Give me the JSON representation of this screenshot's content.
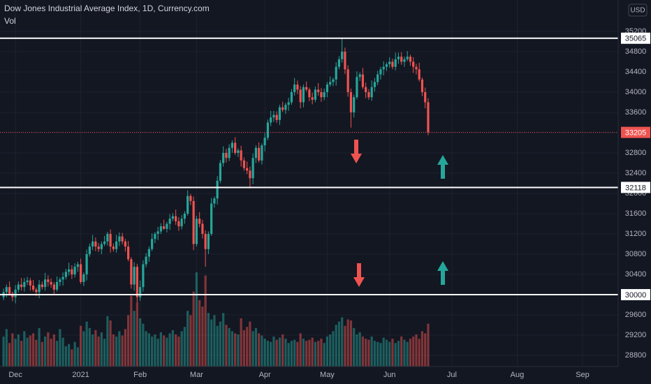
{
  "chart_data": {
    "type": "candlestick",
    "title": "Dow Jones Industrial Average Index, 1D, Currency.com",
    "volume_label": "Vol",
    "currency": "USD",
    "up_color": "#26a69a",
    "down_color": "#ef5350",
    "xlim": [
      -1.2,
      207
    ],
    "xticks": [
      {
        "value": 4,
        "label": "Dec"
      },
      {
        "value": 26,
        "label": "2021"
      },
      {
        "value": 46,
        "label": "Feb"
      },
      {
        "value": 65,
        "label": "Mar"
      },
      {
        "value": 88,
        "label": "Apr"
      },
      {
        "value": 109,
        "label": "May"
      },
      {
        "value": 130,
        "label": "Jun"
      },
      {
        "value": 151,
        "label": "Jul"
      },
      {
        "value": 173,
        "label": "Aug"
      },
      {
        "value": 195,
        "label": "Sep"
      }
    ],
    "ylim": [
      28580,
      35820
    ],
    "yticks": [
      28800,
      29200,
      29600,
      30000,
      30400,
      30800,
      31200,
      31600,
      32000,
      32400,
      32800,
      33200,
      33600,
      34000,
      34400,
      34800,
      35200
    ],
    "grid": true,
    "levels": [
      35065,
      32118,
      30000
    ],
    "open": [
      29950,
      30050,
      30150,
      30020,
      29950,
      30100,
      30200,
      30150,
      30250,
      30280,
      30180,
      30100,
      30050,
      30200,
      30150,
      30300,
      30250,
      30200,
      30100,
      30250,
      30300,
      30350,
      30450,
      30500,
      30400,
      30550,
      30600,
      30250,
      30400,
      30800,
      30950,
      31050,
      30950,
      30900,
      31000,
      31050,
      31200,
      30950,
      30900,
      31050,
      31150,
      31050,
      30950,
      30700,
      30200,
      30550,
      29950,
      30150,
      30600,
      30750,
      30900,
      31100,
      31200,
      31250,
      31350,
      31300,
      31400,
      31500,
      31550,
      31450,
      31350,
      31500,
      31600,
      31950,
      31850,
      31000,
      31500,
      31400,
      31200,
      30900,
      31200,
      31800,
      31900,
      32250,
      32600,
      32800,
      32700,
      32900,
      33000,
      32800,
      32850,
      32650,
      32500,
      32450,
      32300,
      32700,
      32900,
      32650,
      32950,
      33100,
      33400,
      33500,
      33550,
      33450,
      33700,
      33650,
      33750,
      33800,
      34000,
      34150,
      34050,
      33800,
      34100,
      34050,
      33900,
      33850,
      34050,
      34000,
      33900,
      34000,
      34150,
      34200,
      34250,
      34500,
      34650,
      34800,
      34450,
      34000,
      33600,
      33900,
      34300,
      34350,
      34100,
      34000,
      33900,
      34100,
      34200,
      34350,
      34450,
      34500,
      34550,
      34600,
      34500,
      34650,
      34700,
      34600,
      34650,
      34700,
      34600,
      34500,
      34450,
      34250,
      34000,
      33800
    ],
    "high": [
      30120,
      30200,
      30260,
      30060,
      30190,
      30260,
      30330,
      30330,
      30350,
      30330,
      30290,
      30140,
      30290,
      30260,
      30430,
      30380,
      30320,
      30250,
      30360,
      30340,
      30440,
      30510,
      30630,
      30580,
      30620,
      30650,
      30710,
      30440,
      30890,
      31010,
      31180,
      31130,
      31020,
      31050,
      31160,
      31240,
      31290,
      31010,
      31180,
      31230,
      31220,
      31100,
      31060,
      30740,
      30640,
      30610,
      30280,
      30680,
      30820,
      30950,
      31210,
      31240,
      31340,
      31410,
      31480,
      31440,
      31590,
      31610,
      31680,
      31530,
      31570,
      31650,
      32060,
      31990,
      31940,
      31560,
      31630,
      31480,
      31270,
      31250,
      31910,
      31940,
      32340,
      32660,
      32930,
      32880,
      32970,
      33050,
      33110,
      32890,
      32940,
      32710,
      32630,
      32530,
      32790,
      32950,
      33010,
      32990,
      33190,
      33460,
      33630,
      33630,
      33620,
      33750,
      33810,
      33790,
      33890,
      34060,
      34280,
      34230,
      34120,
      34150,
      34210,
      34090,
      33990,
      34110,
      34180,
      34080,
      34070,
      34200,
      34310,
      34290,
      34590,
      34710,
      35065,
      34880,
      34530,
      34070,
      33950,
      34410,
      34390,
      34480,
      34190,
      34060,
      34230,
      34280,
      34420,
      34500,
      34610,
      34590,
      34690,
      34660,
      34780,
      34780,
      34790,
      34700,
      34810,
      34740,
      34690,
      34560,
      34580,
      34290,
      34090,
      33880
    ],
    "low": [
      29890,
      29950,
      29980,
      29870,
      29830,
      30050,
      30080,
      30060,
      30190,
      30080,
      30060,
      29970,
      29930,
      30100,
      30080,
      30160,
      30140,
      30000,
      30060,
      30170,
      30180,
      30300,
      30380,
      30310,
      30340,
      30450,
      30210,
      30170,
      30280,
      30750,
      30880,
      30860,
      30840,
      30800,
      30960,
      30970,
      30830,
      30850,
      30830,
      30960,
      30990,
      30850,
      30660,
      30120,
      30080,
      29850,
      29880,
      30060,
      30540,
      30650,
      30860,
      31020,
      31080,
      31200,
      31280,
      31230,
      31280,
      31450,
      31380,
      31260,
      31290,
      31400,
      31560,
      31770,
      30880,
      30950,
      31330,
      31110,
      30550,
      30800,
      31160,
      31720,
      31780,
      32200,
      32530,
      32610,
      32640,
      32800,
      32760,
      32720,
      32530,
      32450,
      32380,
      32100,
      32180,
      32600,
      32610,
      32570,
      32830,
      33050,
      33330,
      33410,
      33390,
      33350,
      33610,
      33570,
      33630,
      33750,
      33930,
      33960,
      33680,
      33700,
      34010,
      33820,
      33760,
      33800,
      33930,
      33810,
      33840,
      33900,
      34110,
      34120,
      34130,
      34450,
      34580,
      34360,
      33910,
      33300,
      33500,
      33860,
      34220,
      34060,
      33880,
      33850,
      33830,
      34010,
      34140,
      34250,
      34330,
      34420,
      34480,
      34450,
      34430,
      34560,
      34540,
      34500,
      34610,
      34520,
      34380,
      34350,
      34210,
      33920,
      33680,
      33150
    ],
    "close": [
      30050,
      30150,
      30020,
      29950,
      30100,
      30200,
      30150,
      30250,
      30280,
      30180,
      30100,
      30050,
      30200,
      30150,
      30300,
      30250,
      30200,
      30100,
      30250,
      30300,
      30350,
      30450,
      30500,
      30400,
      30550,
      30600,
      30250,
      30400,
      30800,
      30950,
      31050,
      30950,
      30900,
      31000,
      31050,
      31200,
      30950,
      30900,
      31050,
      31150,
      31050,
      30950,
      30700,
      30200,
      30550,
      29950,
      30150,
      30600,
      30750,
      30900,
      31100,
      31200,
      31250,
      31350,
      31300,
      31400,
      31500,
      31550,
      31450,
      31350,
      31500,
      31600,
      31950,
      31850,
      31000,
      31500,
      31400,
      31200,
      30900,
      31200,
      31800,
      31900,
      32250,
      32600,
      32800,
      32700,
      32900,
      33000,
      32800,
      32850,
      32650,
      32500,
      32450,
      32300,
      32700,
      32900,
      32650,
      32950,
      33100,
      33400,
      33500,
      33550,
      33450,
      33700,
      33650,
      33750,
      33800,
      34000,
      34150,
      34050,
      33800,
      34100,
      34050,
      33900,
      33850,
      34050,
      34000,
      33900,
      34000,
      34150,
      34200,
      34250,
      34500,
      34650,
      34800,
      34450,
      34000,
      33600,
      33900,
      34300,
      34350,
      34100,
      34000,
      33900,
      34100,
      34200,
      34350,
      34450,
      34500,
      34550,
      34600,
      34500,
      34650,
      34700,
      34600,
      34650,
      34700,
      34600,
      34500,
      34450,
      34250,
      34000,
      33800,
      33205
    ],
    "volume": [
      280,
      350,
      220,
      310,
      260,
      300,
      240,
      330,
      270,
      290,
      310,
      250,
      360,
      230,
      280,
      320,
      260,
      300,
      240,
      350,
      270,
      190,
      210,
      160,
      230,
      180,
      380,
      330,
      420,
      360,
      300,
      340,
      280,
      320,
      260,
      470,
      430,
      300,
      280,
      330,
      290,
      350,
      480,
      660,
      520,
      600,
      450,
      400,
      330,
      310,
      280,
      300,
      260,
      320,
      290,
      270,
      310,
      340,
      300,
      280,
      330,
      370,
      520,
      480,
      700,
      880,
      620,
      560,
      850,
      500,
      440,
      480,
      380,
      420,
      500,
      390,
      360,
      330,
      310,
      300,
      450,
      340,
      370,
      420,
      330,
      360,
      310,
      290,
      260,
      240,
      230,
      280,
      250,
      270,
      300,
      260,
      220,
      240,
      250,
      230,
      310,
      260,
      240,
      250,
      270,
      230,
      240,
      260,
      220,
      280,
      300,
      330,
      390,
      420,
      460,
      380,
      440,
      430,
      360,
      300,
      320,
      280,
      260,
      250,
      280,
      240,
      230,
      220,
      270,
      250,
      230,
      260,
      220,
      240,
      280,
      250,
      230,
      260,
      280,
      300,
      260,
      330,
      310,
      400
    ]
  }
}
